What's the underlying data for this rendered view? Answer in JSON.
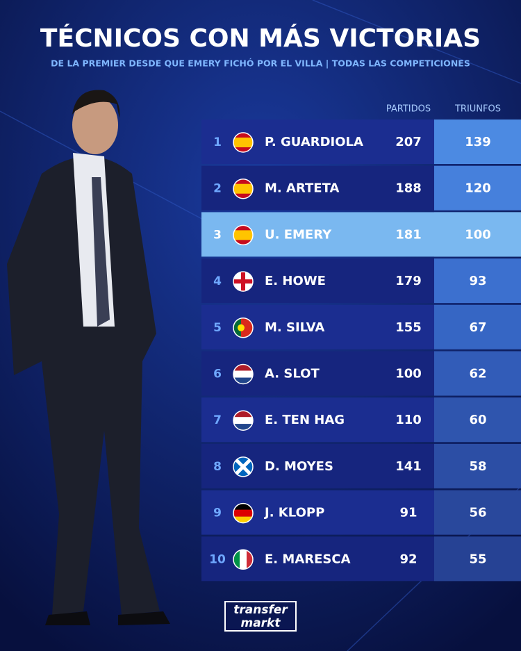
{
  "header": {
    "title": "TÉCNICOS CON MÁS VICTORIAS",
    "subtitle": "DE LA PREMIER DESDE QUE EMERY FICHÓ POR EL VILLA | TODAS LAS COMPETICIONES"
  },
  "table": {
    "columns": [
      "PARTIDOS",
      "TRIUNFOS"
    ],
    "rows": [
      [
        1,
        "P. GUARDIOLA",
        207,
        139
      ],
      [
        2,
        "M. ARTETA",
        188,
        120
      ],
      [
        3,
        "U. EMERY",
        181,
        100
      ],
      [
        4,
        "E. HOWE",
        179,
        93
      ],
      [
        5,
        "M. SILVA",
        155,
        67
      ],
      [
        6,
        "A. SLOT",
        100,
        62
      ],
      [
        7,
        "E. TEN HAG",
        110,
        60
      ],
      [
        8,
        "D. MOYES",
        141,
        58
      ],
      [
        9,
        "J. KLOPP",
        91,
        56
      ],
      [
        10,
        "E. MARESCA",
        92,
        55
      ]
    ]
  },
  "logo": {
    "line1": "transfer",
    "line2": "markt"
  }
}
